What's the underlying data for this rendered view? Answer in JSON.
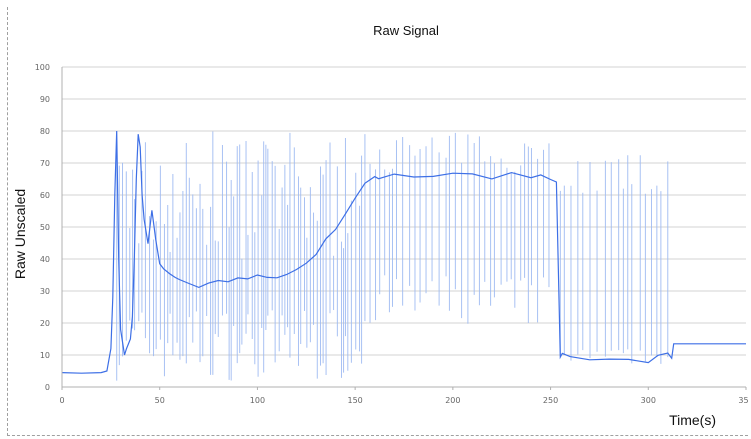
{
  "chart_data": {
    "type": "line",
    "title": "Raw Signal",
    "xlabel": "Time(s)",
    "ylabel": "Raw Unscaled",
    "xlim": [
      0,
      350
    ],
    "ylim": [
      0,
      100
    ],
    "xticks": [
      "0",
      "50",
      "100",
      "150",
      "200",
      "250",
      "300",
      "350"
    ],
    "yticks": [
      "0",
      "10",
      "20",
      "30",
      "40",
      "50",
      "60",
      "70",
      "80",
      "90",
      "100"
    ],
    "grid": "horizontal",
    "colors": {
      "series": "#3d6fe6",
      "spikes": "#9fbbf2",
      "grid": "#d3d3d3",
      "axis": "#b0b0b0"
    },
    "series": [
      {
        "x": [
          0,
          10,
          20,
          23,
          25,
          26,
          27,
          28,
          29,
          30,
          32,
          33,
          35,
          36,
          37,
          38,
          39,
          40,
          41,
          42,
          44,
          46,
          48,
          50,
          52,
          55,
          58,
          60,
          65,
          70,
          75,
          80,
          85,
          90,
          95,
          100,
          105,
          110,
          115,
          120,
          125,
          130,
          135,
          140,
          145,
          150,
          155,
          160,
          162,
          170,
          180,
          190,
          200,
          210,
          220,
          230,
          240,
          245,
          250,
          253,
          255,
          256,
          260,
          270,
          280,
          290,
          300,
          305,
          310,
          312,
          313,
          320,
          330,
          340,
          350
        ],
        "y": [
          4.5,
          4.3,
          4.5,
          5,
          12,
          28,
          60,
          80,
          40,
          18,
          10,
          12,
          15,
          22,
          40,
          65,
          79,
          75,
          60,
          52,
          45,
          55,
          45,
          38,
          36,
          35,
          34,
          33,
          33,
          32,
          32,
          33,
          33,
          34,
          34,
          35,
          35,
          35,
          36,
          37,
          39,
          42,
          46,
          50,
          55,
          60,
          63,
          65,
          66,
          66,
          66,
          66,
          66,
          66,
          66,
          66,
          66,
          66,
          65,
          65,
          10,
          10,
          9,
          9,
          8,
          8,
          8,
          10,
          11,
          9,
          13.5,
          13.5,
          13.5,
          13.5,
          13.5
        ]
      }
    ],
    "spike_bands": [
      {
        "from": 28,
        "to": 155,
        "every": 1.6,
        "low": [
          2,
          25
        ],
        "high": [
          40,
          80
        ]
      },
      {
        "from": 155,
        "to": 250,
        "every": 2.6,
        "low": [
          18,
          35
        ],
        "high": [
          67,
          80
        ]
      },
      {
        "from": 255,
        "to": 312,
        "every": 3.2,
        "low": [
          7,
          12
        ],
        "high": [
          60,
          73
        ]
      }
    ]
  }
}
